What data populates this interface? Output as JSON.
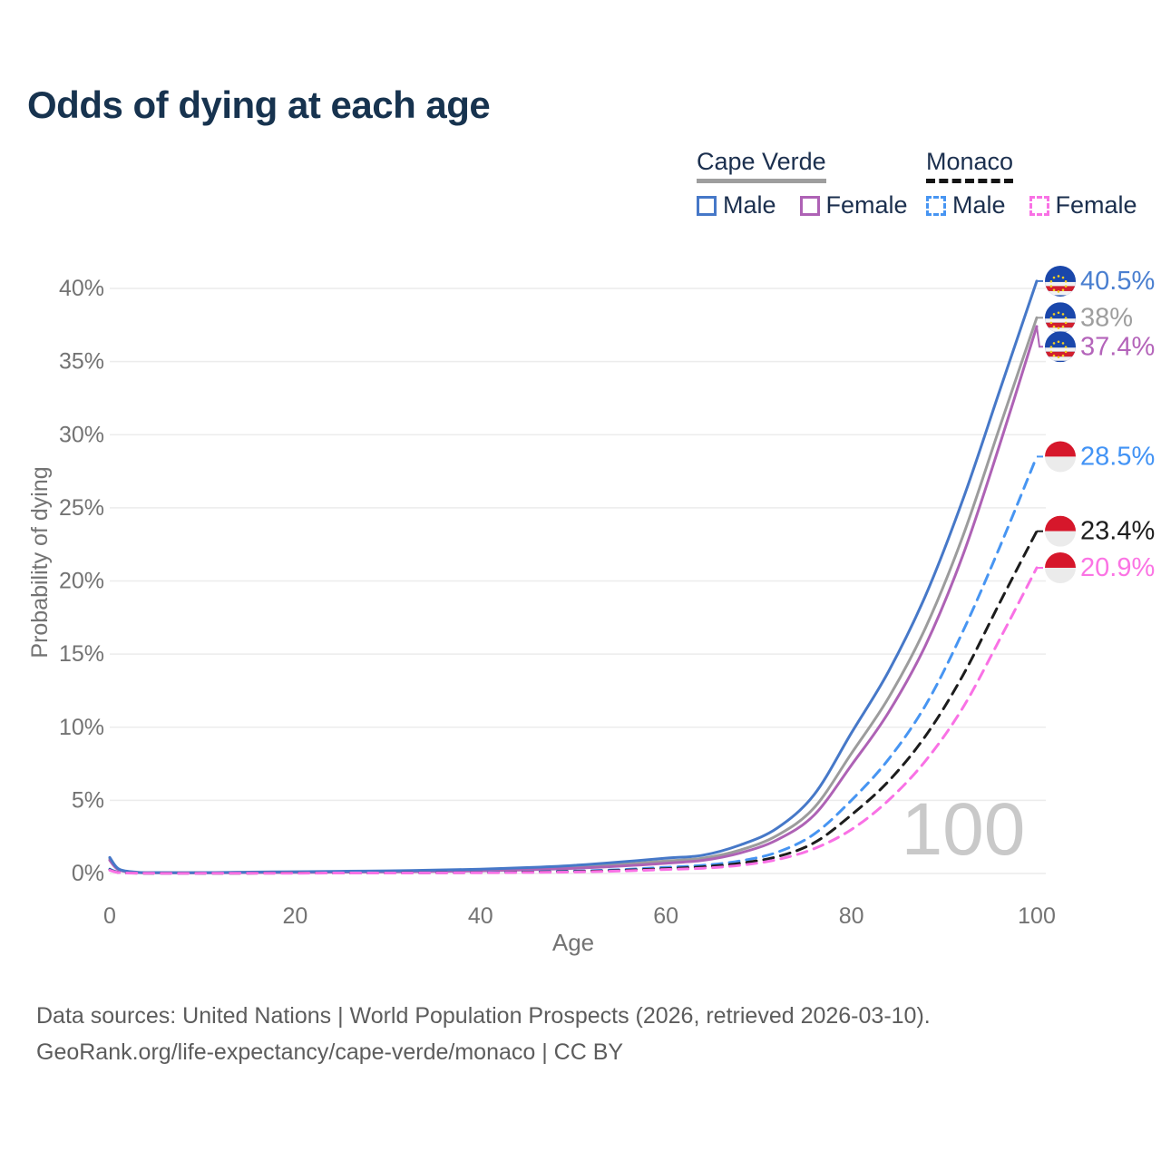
{
  "title": "Odds of dying at each age",
  "legend": {
    "groups": [
      {
        "title": "Cape Verde",
        "line_style": "solid",
        "underline_color": "#9e9e9e",
        "items": [
          {
            "label": "Male",
            "color": "#4678c8"
          },
          {
            "label": "Female",
            "color": "#ae62b5"
          }
        ]
      },
      {
        "title": "Monaco",
        "line_style": "dashed",
        "underline_color": "#151515",
        "items": [
          {
            "label": "Male",
            "color": "#4795f2"
          },
          {
            "label": "Female",
            "color": "#f971e5"
          }
        ]
      }
    ]
  },
  "chart_data": {
    "type": "line",
    "title": "Odds of dying at each age",
    "xlabel": "Age",
    "ylabel": "Probability of dying",
    "xlim": [
      0,
      100
    ],
    "ylim_percent": [
      0,
      42
    ],
    "x_ticks": [
      0,
      20,
      40,
      60,
      80,
      100
    ],
    "y_ticks_percent": [
      0,
      5,
      10,
      15,
      20,
      25,
      30,
      35,
      40
    ],
    "grid": "horizontal",
    "legend_position": "top-right",
    "watermark": "100",
    "ages": [
      0,
      1,
      3,
      5,
      10,
      15,
      20,
      25,
      30,
      35,
      40,
      45,
      50,
      55,
      60,
      64,
      68,
      72,
      76,
      80,
      84,
      88,
      92,
      96,
      100
    ],
    "series": [
      {
        "id": "cv_both",
        "name": "Cape Verde Both sexes",
        "country": "Cape Verde",
        "flag": "cape-verde",
        "color": "#9c9c9c",
        "dash": null,
        "end_label": "38%",
        "end_value": 38,
        "label_color": "#9e9e9e",
        "values_percent": [
          1.0,
          0.27,
          0.07,
          0.05,
          0.05,
          0.07,
          0.1,
          0.12,
          0.14,
          0.18,
          0.23,
          0.31,
          0.43,
          0.62,
          0.85,
          1.05,
          1.6,
          2.6,
          4.5,
          8.2,
          12.0,
          16.8,
          23.0,
          30.5,
          38.0
        ]
      },
      {
        "id": "cv_female",
        "name": "Cape Verde Female",
        "country": "Cape Verde",
        "flag": "cape-verde",
        "color": "#ae62b5",
        "dash": null,
        "end_label": "37.4%",
        "end_value": 37.4,
        "label_color": "#b464ba",
        "values_percent": [
          0.9,
          0.24,
          0.06,
          0.05,
          0.04,
          0.06,
          0.07,
          0.09,
          0.11,
          0.14,
          0.18,
          0.25,
          0.35,
          0.5,
          0.7,
          0.9,
          1.4,
          2.3,
          4.0,
          7.4,
          11.0,
          15.6,
          21.7,
          29.3,
          37.4
        ]
      },
      {
        "id": "cv_male",
        "name": "Cape Verde Male",
        "country": "Cape Verde",
        "flag": "cape-verde",
        "color": "#4678c8",
        "dash": null,
        "end_label": "40.5%",
        "end_value": 40.5,
        "label_color": "#4a7fd0",
        "values_percent": [
          1.1,
          0.3,
          0.08,
          0.06,
          0.06,
          0.09,
          0.12,
          0.15,
          0.18,
          0.23,
          0.3,
          0.4,
          0.55,
          0.78,
          1.05,
          1.25,
          1.95,
          3.1,
          5.4,
          9.6,
          13.8,
          19.0,
          25.5,
          33.0,
          40.5
        ]
      },
      {
        "id": "mc_male",
        "name": "Monaco Male",
        "country": "Monaco",
        "flag": "monaco",
        "color": "#4795f2",
        "dash": "11,8",
        "end_label": "28.5%",
        "end_value": 28.5,
        "label_color": "#4293f5",
        "values_percent": [
          0.3,
          0.08,
          0.03,
          0.02,
          0.02,
          0.03,
          0.04,
          0.04,
          0.05,
          0.06,
          0.08,
          0.11,
          0.16,
          0.26,
          0.42,
          0.56,
          0.86,
          1.45,
          2.7,
          5.0,
          7.8,
          11.5,
          16.5,
          22.3,
          28.5
        ]
      },
      {
        "id": "mc_both",
        "name": "Monaco Both sexes",
        "country": "Monaco",
        "flag": "monaco",
        "color": "#1c1c1c",
        "dash": "11,8",
        "end_label": "23.4%",
        "end_value": 23.4,
        "label_color": "#1d1d1d",
        "values_percent": [
          0.25,
          0.07,
          0.02,
          0.02,
          0.02,
          0.02,
          0.03,
          0.03,
          0.04,
          0.05,
          0.06,
          0.09,
          0.13,
          0.21,
          0.33,
          0.45,
          0.7,
          1.15,
          2.1,
          4.0,
          6.3,
          9.4,
          13.5,
          18.5,
          23.4
        ]
      },
      {
        "id": "mc_female",
        "name": "Monaco Female",
        "country": "Monaco",
        "flag": "monaco",
        "color": "#f971e5",
        "dash": "11,8",
        "end_label": "20.9%",
        "end_value": 20.9,
        "label_color": "#fb74e4",
        "values_percent": [
          0.22,
          0.06,
          0.02,
          0.01,
          0.01,
          0.02,
          0.02,
          0.03,
          0.03,
          0.04,
          0.05,
          0.07,
          0.1,
          0.17,
          0.27,
          0.36,
          0.56,
          0.95,
          1.7,
          3.0,
          5.0,
          7.7,
          11.3,
          16.0,
          20.9
        ]
      }
    ],
    "flag_colors": {
      "cape_verde_blue": "#1a47ab",
      "cape_verde_red": "#d21f2e",
      "cape_verde_white": "#f2f2f2",
      "cape_verde_yellow": "#f5d020",
      "monaco_red": "#d6172b",
      "monaco_white": "#ebebeb"
    }
  },
  "colors": {
    "title": "#17334f",
    "axis_text": "#737373",
    "gridline": "#ececec",
    "watermark": "#c9c9c9",
    "footer": "#5c5c5c"
  },
  "footer": {
    "line1": "Data sources: United Nations | World Population Prospects (2026, retrieved 2026-03-10).",
    "line2": "GeoRank.org/life-expectancy/cape-verde/monaco | CC BY"
  }
}
